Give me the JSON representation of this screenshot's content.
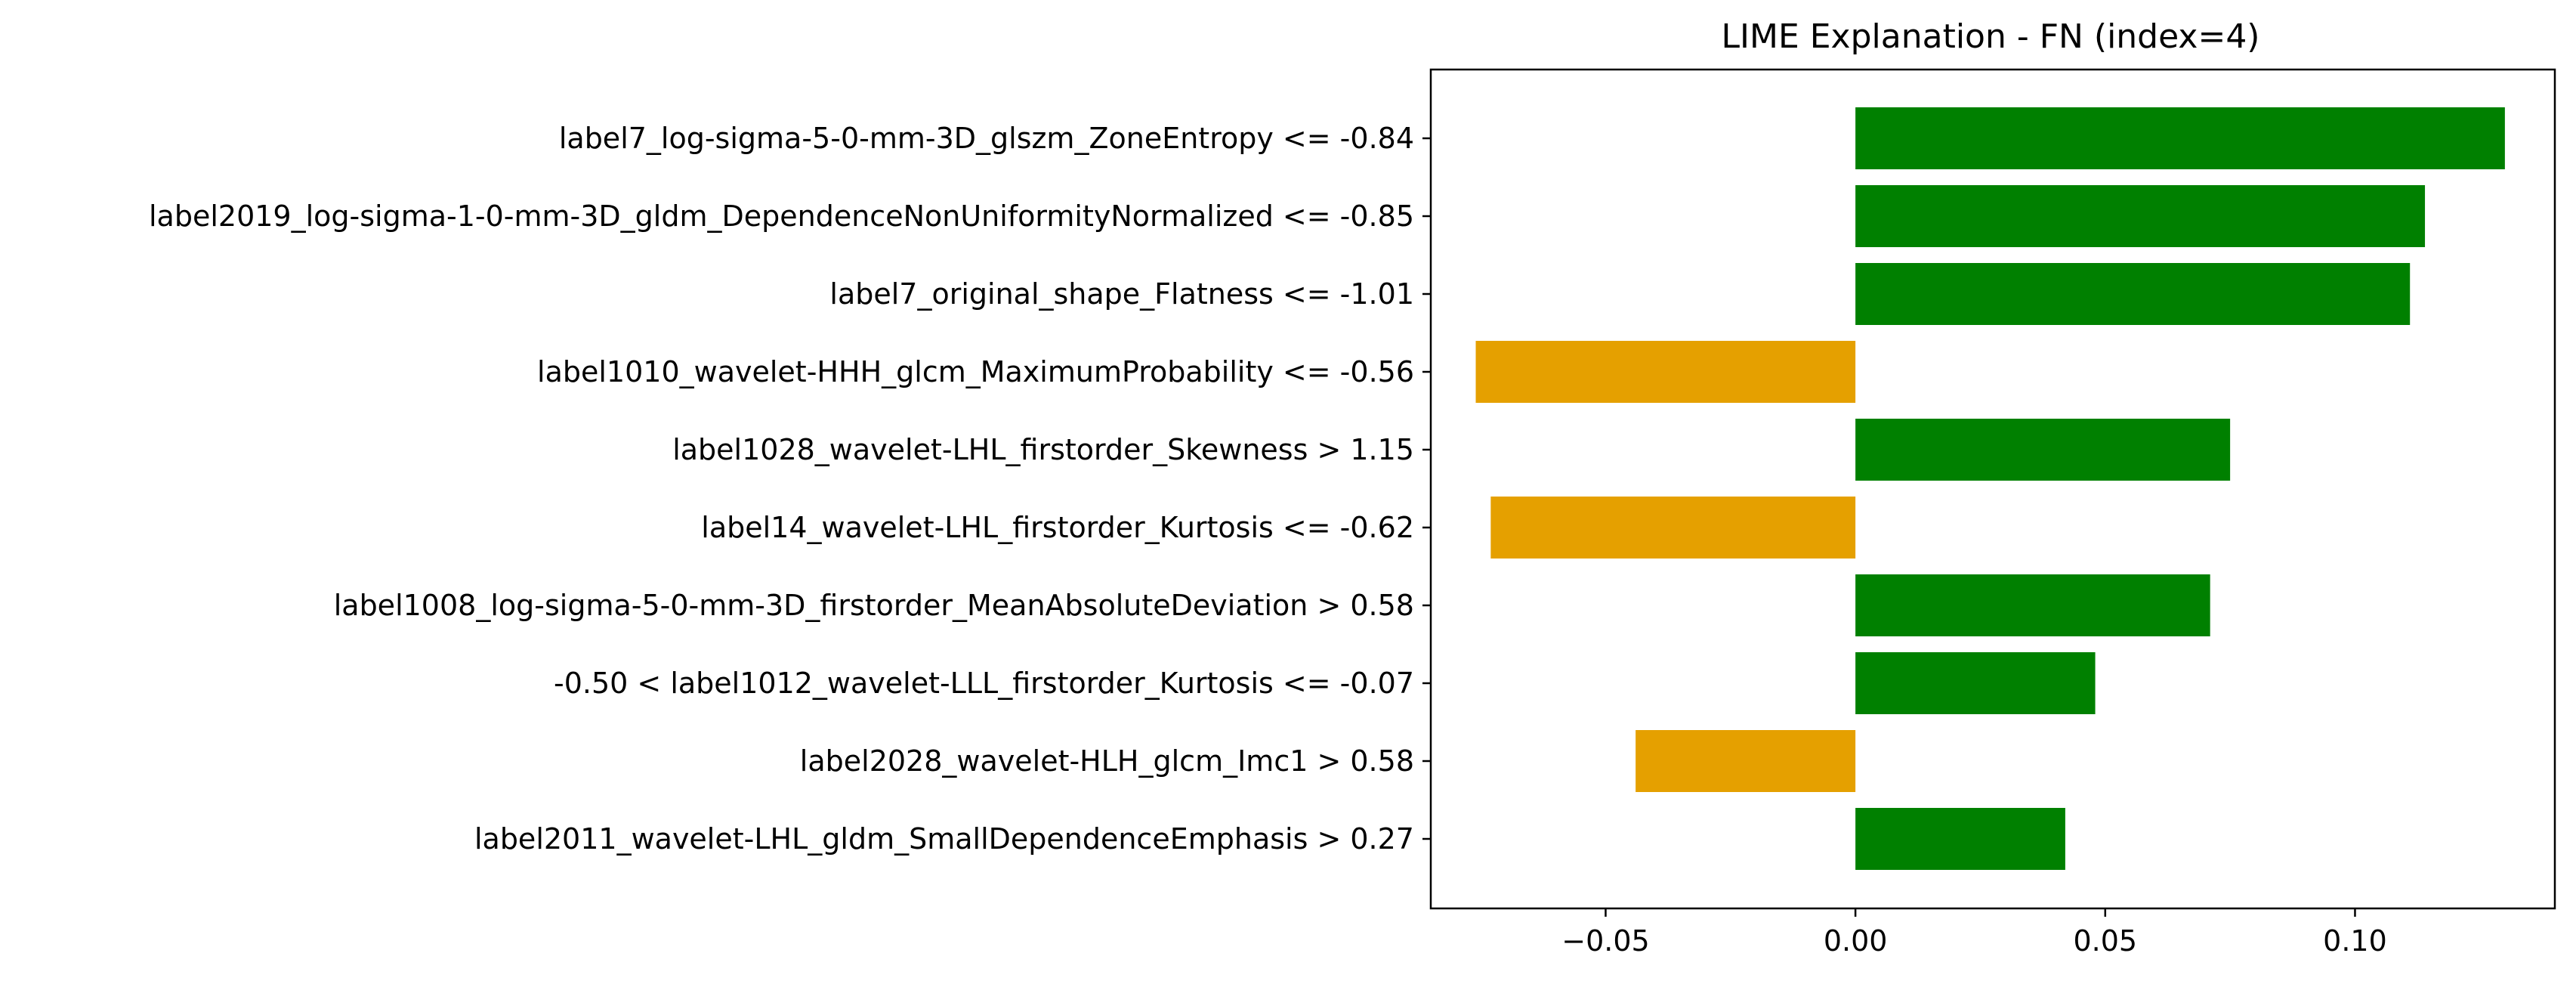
{
  "chart_data": {
    "type": "bar",
    "orientation": "horizontal",
    "title": "LIME Explanation - FN (index=4)",
    "xlabel": "",
    "ylabel": "",
    "xlim": [
      -0.085,
      0.14
    ],
    "grid": false,
    "categories": [
      "label7_log-sigma-5-0-mm-3D_glszm_ZoneEntropy <= -0.84",
      "label2019_log-sigma-1-0-mm-3D_gldm_DependenceNonUniformityNormalized <= -0.85",
      "label7_original_shape_Flatness <= -1.01",
      "label1010_wavelet-HHH_glcm_MaximumProbability <= -0.56",
      "label1028_wavelet-LHL_firstorder_Skewness > 1.15",
      "label14_wavelet-LHL_firstorder_Kurtosis <= -0.62",
      "label1008_log-sigma-5-0-mm-3D_firstorder_MeanAbsoluteDeviation > 0.58",
      "-0.50 < label1012_wavelet-LLL_firstorder_Kurtosis <= -0.07",
      "label2028_wavelet-HLH_glcm_Imc1 > 0.58",
      "label2011_wavelet-LHL_gldm_SmallDependenceEmphasis > 0.27"
    ],
    "values": [
      0.13,
      0.114,
      0.111,
      -0.076,
      0.075,
      -0.073,
      0.071,
      0.048,
      -0.044,
      0.042
    ],
    "x_ticks": [
      -0.05,
      0.0,
      0.05,
      0.1
    ],
    "x_tick_labels": [
      "−0.05",
      "0.00",
      "0.05",
      "0.10"
    ],
    "colors": {
      "positive": "#008000",
      "negative": "#e5a000"
    }
  }
}
